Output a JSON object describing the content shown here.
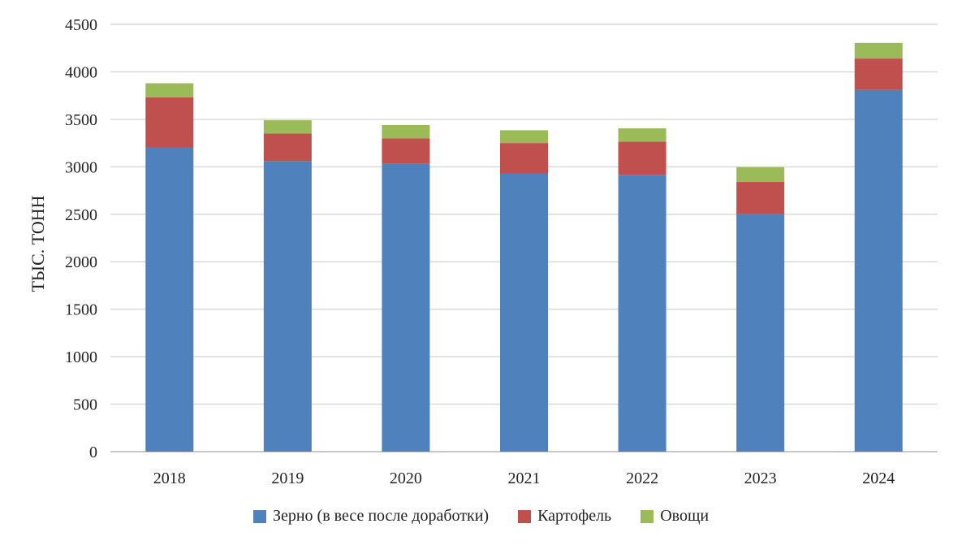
{
  "chart_data": {
    "type": "bar",
    "stacked": true,
    "categories": [
      "2018",
      "2019",
      "2020",
      "2021",
      "2022",
      "2023",
      "2024"
    ],
    "series": [
      {
        "name": "Зерно (в весе после доработки)",
        "color": "#4F81BD",
        "values": [
          3200,
          3060,
          3030,
          2930,
          2915,
          2500,
          3810
        ]
      },
      {
        "name": "Картофель",
        "color": "#C0504D",
        "values": [
          530,
          290,
          270,
          320,
          350,
          340,
          330
        ]
      },
      {
        "name": "Овощи",
        "color": "#9BBB59",
        "values": [
          150,
          140,
          140,
          135,
          140,
          155,
          165
        ]
      }
    ],
    "ylabel": "ТЫС. ТОНН",
    "ylim": [
      0,
      4500
    ],
    "yticks": [
      "0",
      "500",
      "1000",
      "1500",
      "2000",
      "2500",
      "3000",
      "3500",
      "4000",
      "4500"
    ],
    "grid": true,
    "legend_position": "bottom"
  }
}
